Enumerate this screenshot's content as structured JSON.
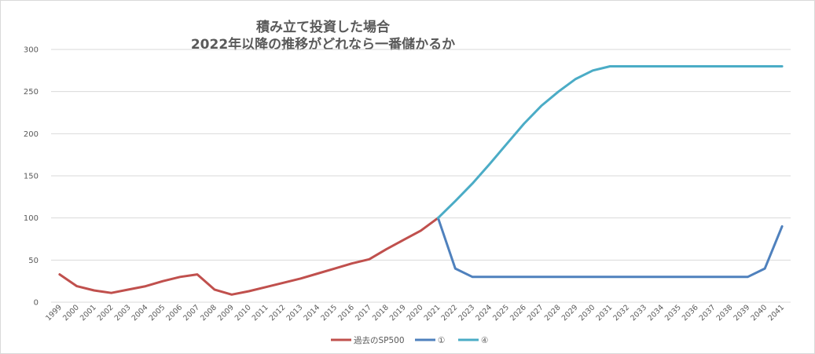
{
  "chart_data": {
    "type": "line",
    "title": [
      "積み立て投資した場合",
      "2022年以降の推移がどれなら一番儲かるか"
    ],
    "categories": [
      "1999",
      "2000",
      "2001",
      "2002",
      "2003",
      "2004",
      "2005",
      "2006",
      "2007",
      "2008",
      "2009",
      "2010",
      "2011",
      "2012",
      "2013",
      "2014",
      "2015",
      "2016",
      "2017",
      "2018",
      "2019",
      "2020",
      "2021",
      "2022",
      "2023",
      "2024",
      "2025",
      "2026",
      "2027",
      "2028",
      "2029",
      "2030",
      "2031",
      "2032",
      "2033",
      "2034",
      "2035",
      "2036",
      "2037",
      "2038",
      "2039",
      "2040",
      "2041"
    ],
    "ylim": [
      0,
      300
    ],
    "yticks": [
      0,
      50,
      100,
      150,
      200,
      250,
      300
    ],
    "grid": true,
    "legend_position": "bottom",
    "series": [
      {
        "name": "過去のSP500",
        "color": "#c0504d",
        "values": [
          33,
          19,
          14,
          11,
          15,
          19,
          25,
          30,
          33,
          15,
          9,
          13,
          18,
          23,
          28,
          34,
          40,
          46,
          51,
          63,
          74,
          85,
          100,
          null,
          null,
          null,
          null,
          null,
          null,
          null,
          null,
          null,
          null,
          null,
          null,
          null,
          null,
          null,
          null,
          null,
          null,
          null,
          null
        ]
      },
      {
        "name": "①",
        "color": "#4f81bd",
        "values": [
          null,
          null,
          null,
          null,
          null,
          null,
          null,
          null,
          null,
          null,
          null,
          null,
          null,
          null,
          null,
          null,
          null,
          null,
          null,
          null,
          null,
          null,
          100,
          40,
          30,
          30,
          30,
          30,
          30,
          30,
          30,
          30,
          30,
          30,
          30,
          30,
          30,
          30,
          30,
          30,
          30,
          40,
          90
        ]
      },
      {
        "name": "④",
        "color": "#4bacc6",
        "values": [
          null,
          null,
          null,
          null,
          null,
          null,
          null,
          null,
          null,
          null,
          null,
          null,
          null,
          null,
          null,
          null,
          null,
          null,
          null,
          null,
          null,
          null,
          100,
          120,
          141,
          164,
          188,
          212,
          233,
          250,
          265,
          275,
          280,
          280,
          280,
          280,
          280,
          280,
          280,
          280,
          280,
          280,
          280
        ]
      }
    ]
  }
}
